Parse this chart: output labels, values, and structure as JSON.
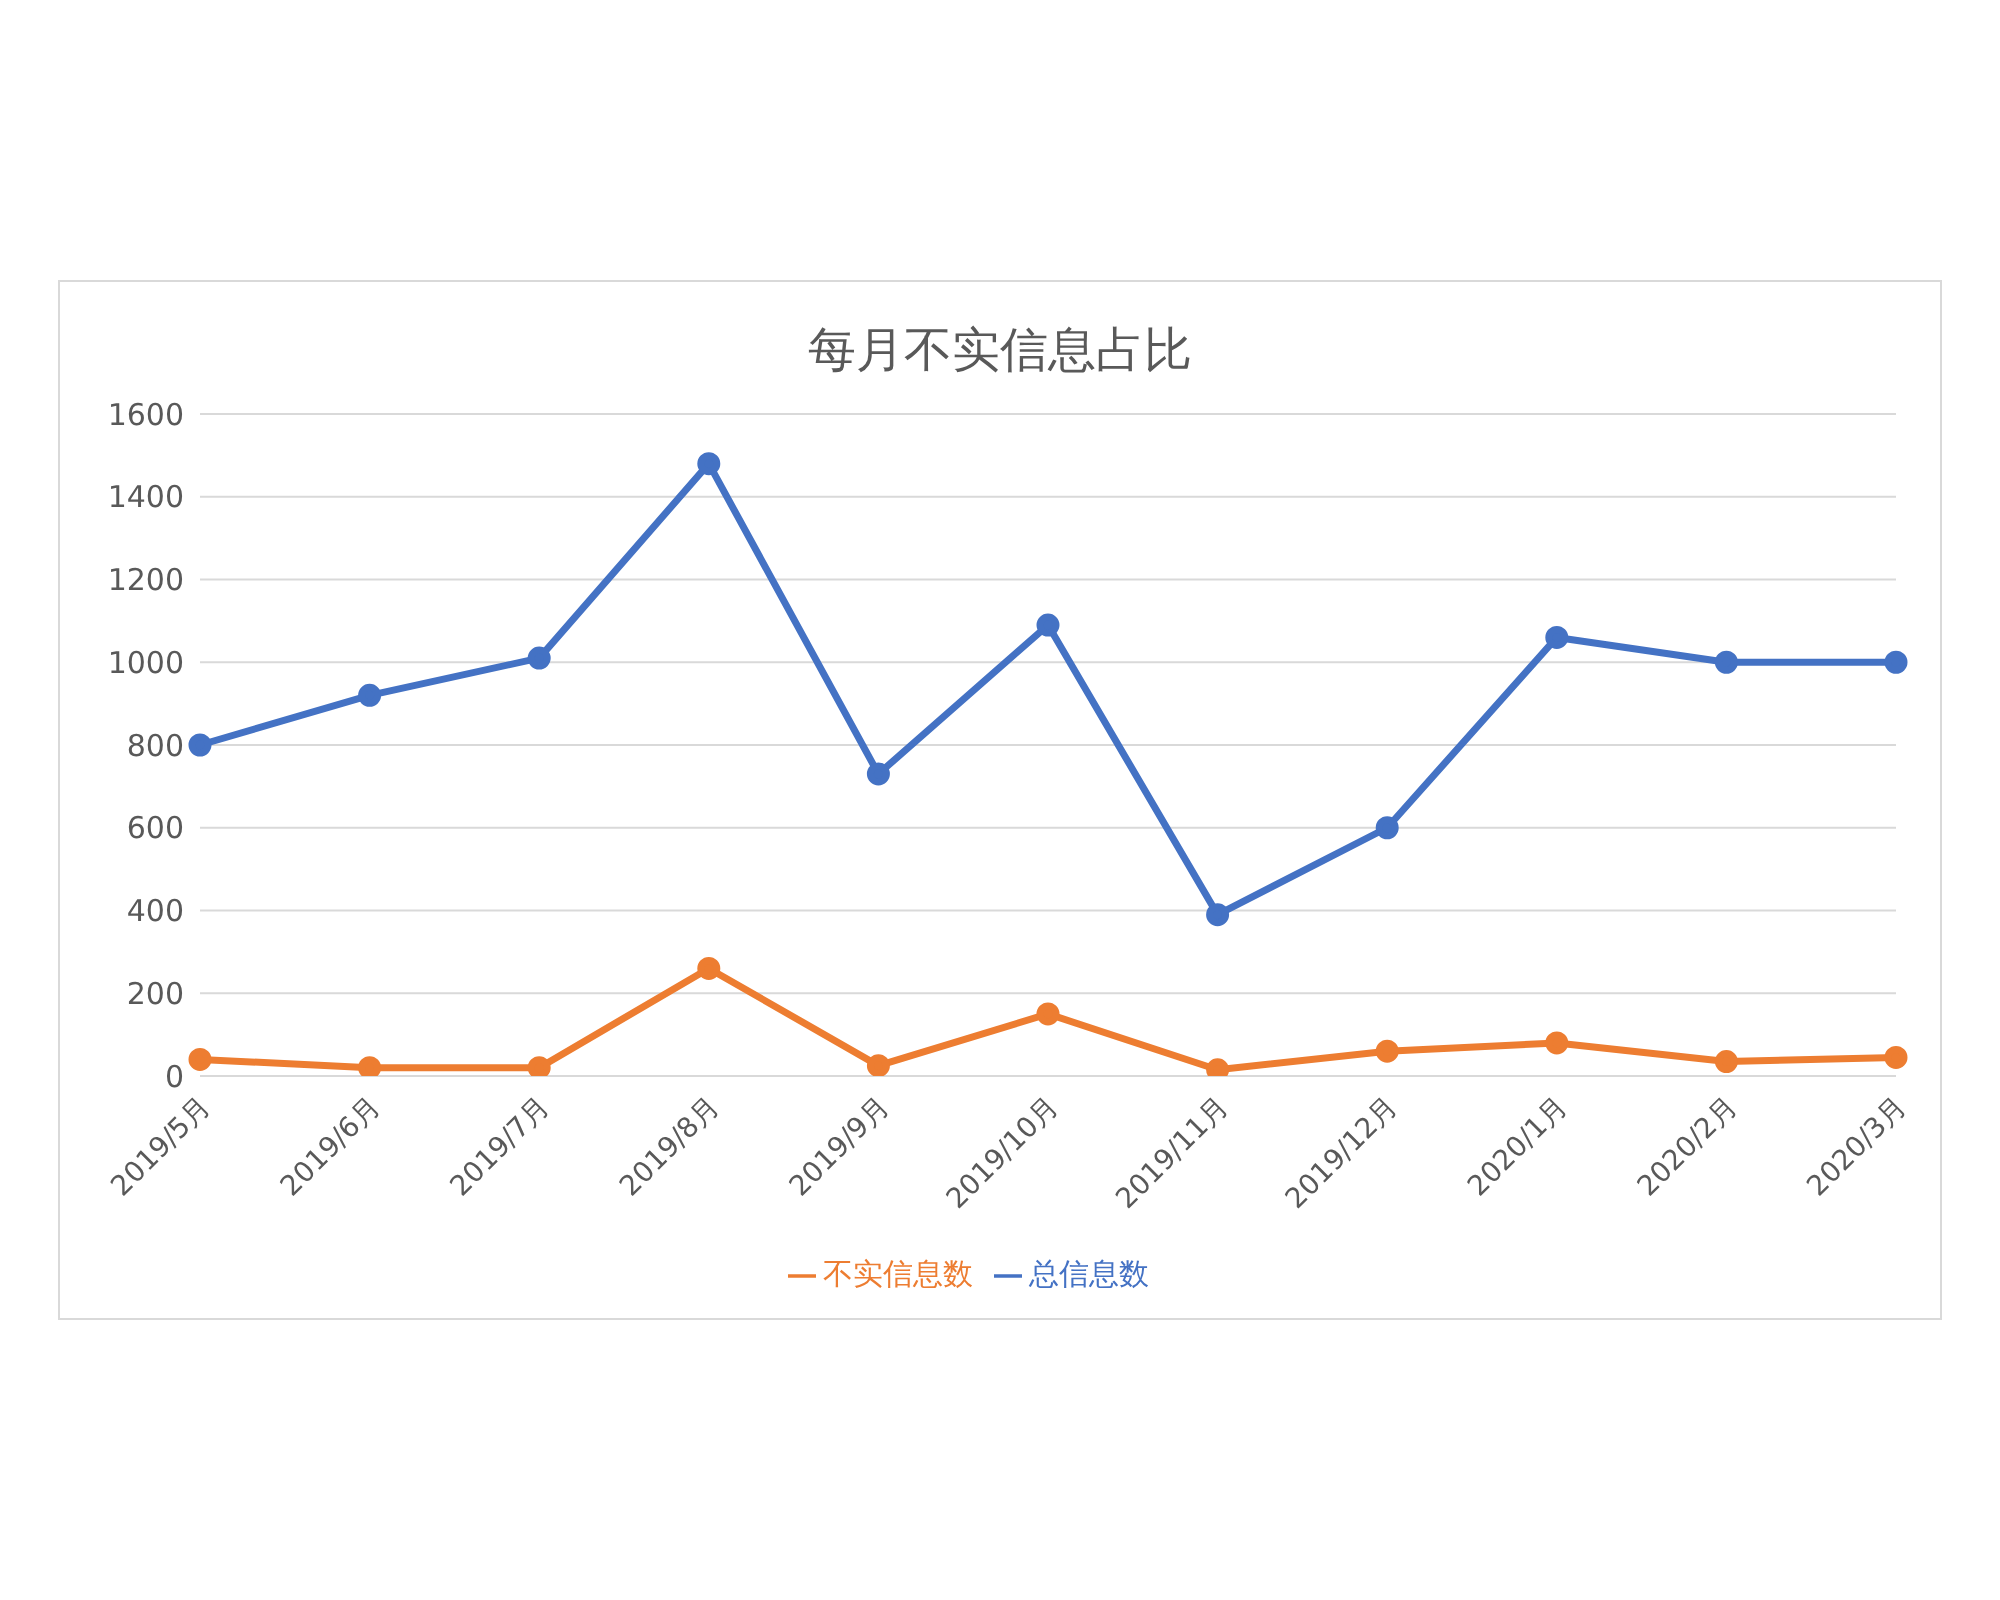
{
  "chart_data": {
    "type": "line",
    "title": "每月不实信息占比",
    "categories": [
      "2019/5月",
      "2019/6月",
      "2019/7月",
      "2019/8月",
      "2019/9月",
      "2019/10月",
      "2019/11月",
      "2019/12月",
      "2020/1月",
      "2020/2月",
      "2020/3月"
    ],
    "series": [
      {
        "name": "总信息数",
        "color": "#4472c4",
        "values": [
          800,
          920,
          1010,
          1480,
          730,
          1090,
          390,
          600,
          1060,
          1000,
          1000
        ]
      },
      {
        "name": "不实信息数",
        "color": "#ed7d31",
        "values": [
          40,
          20,
          20,
          260,
          25,
          150,
          15,
          60,
          80,
          35,
          45
        ]
      }
    ],
    "ylim": [
      0,
      1600
    ],
    "yticks": [
      0,
      200,
      400,
      600,
      800,
      1000,
      1200,
      1400,
      1600
    ],
    "grid": "y",
    "legend": "bottom",
    "marker": "circle",
    "line_style": "solid"
  }
}
